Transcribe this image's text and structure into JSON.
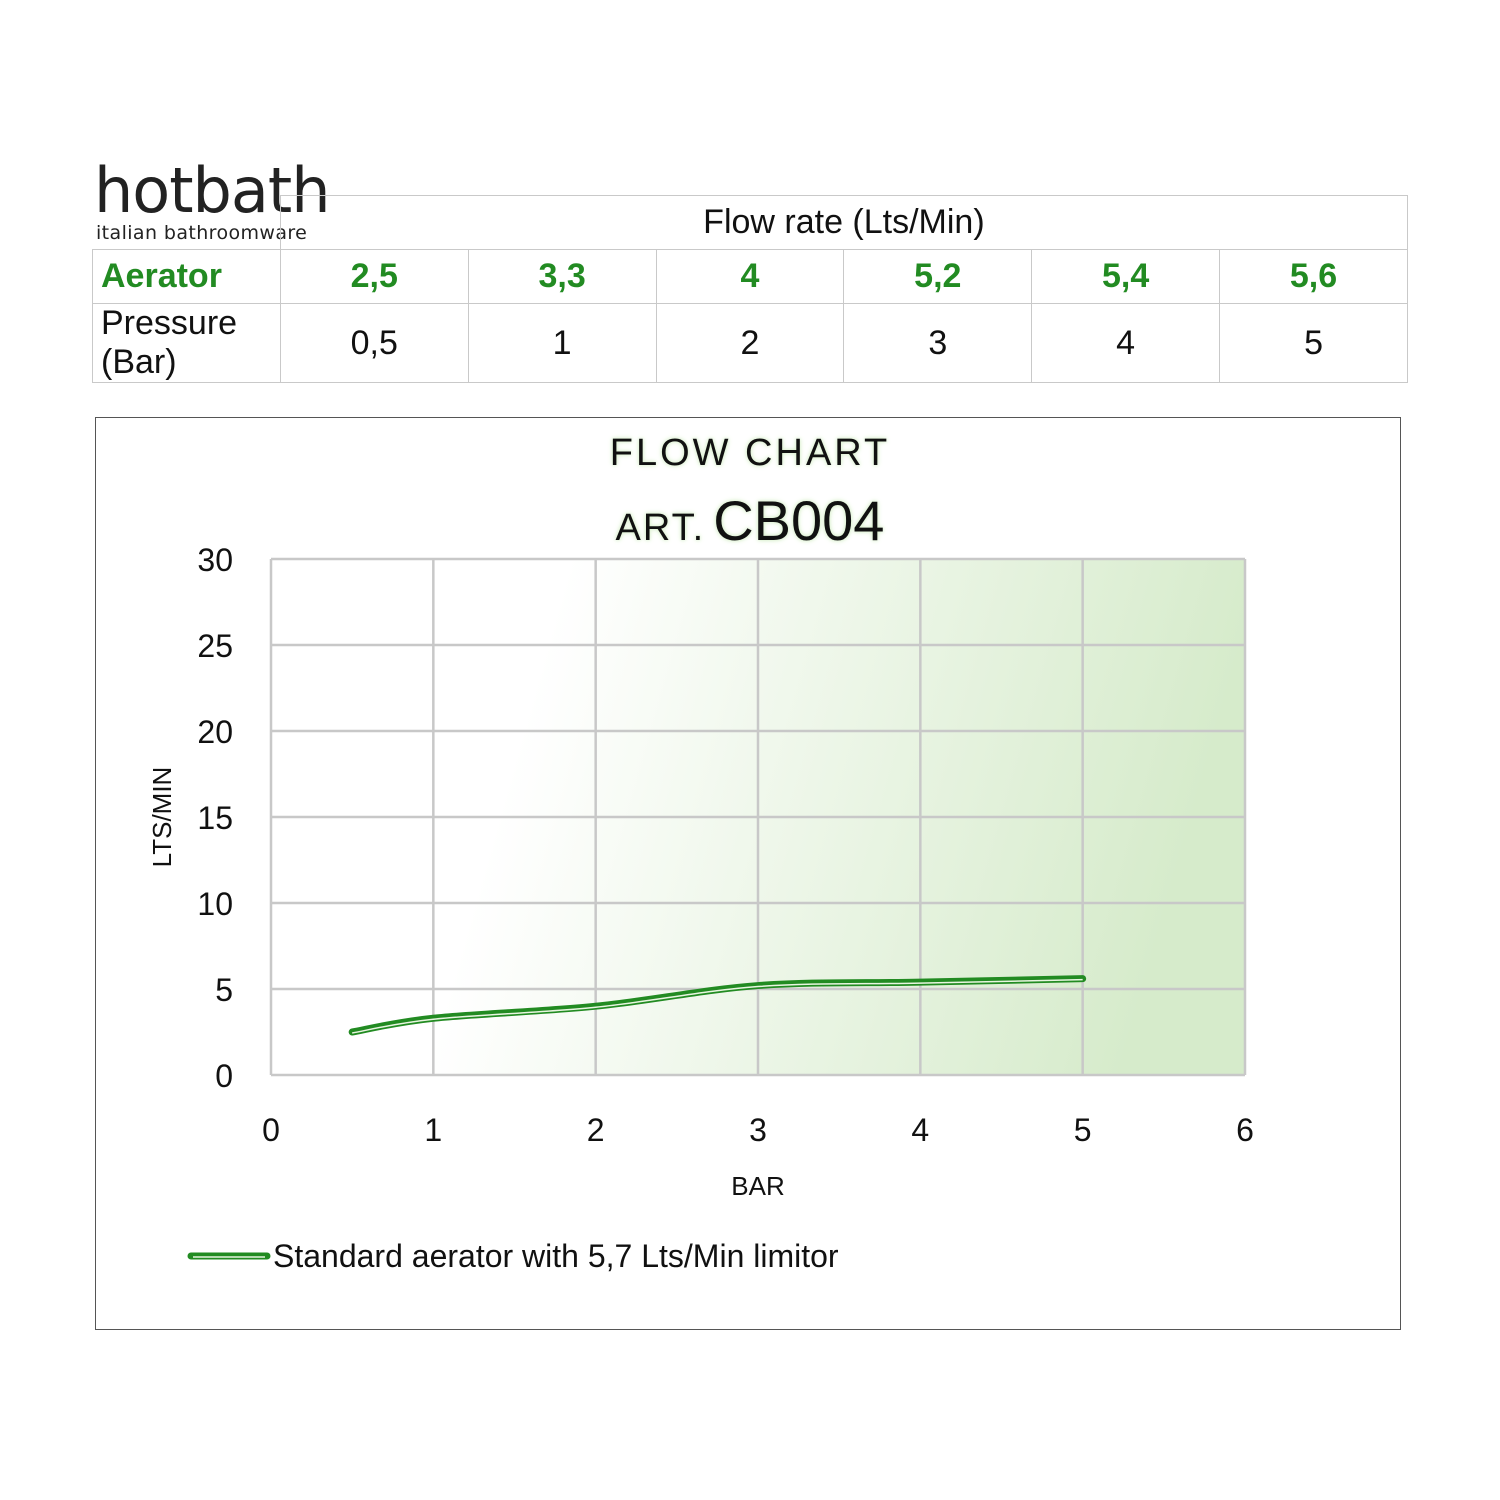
{
  "brand": {
    "name": "hotbath",
    "tagline": "italian bathroomware"
  },
  "table": {
    "header": "Flow rate (Lts/Min)",
    "rows": [
      {
        "label": "Aerator",
        "values": [
          "2,5",
          "3,3",
          "4",
          "5,2",
          "5,4",
          "5,6"
        ]
      },
      {
        "label": "Pressure (Bar)",
        "values": [
          "0,5",
          "1",
          "2",
          "3",
          "4",
          "5"
        ]
      }
    ]
  },
  "colors": {
    "accent": "#228b22",
    "grid": "#c8c8c8"
  },
  "chart_data": {
    "type": "line",
    "title": "FLOW CHART",
    "subtitle_prefix": "ART.",
    "subtitle_code": "CB004",
    "xlabel": "BAR",
    "ylabel": "LTS/MIN",
    "xlim": [
      0,
      6
    ],
    "ylim": [
      0,
      30
    ],
    "xticks": [
      "0",
      "1",
      "2",
      "3",
      "4",
      "5",
      "6"
    ],
    "yticks": [
      "0",
      "5",
      "10",
      "15",
      "20",
      "25",
      "30"
    ],
    "grid": true,
    "legend_position": "bottom-left",
    "series": [
      {
        "name": "Standard aerator with 5,7 Lts/Min limitor",
        "x": [
          0.5,
          1,
          2,
          3,
          4,
          5
        ],
        "y": [
          2.5,
          3.3,
          4,
          5.2,
          5.4,
          5.6
        ]
      }
    ]
  }
}
